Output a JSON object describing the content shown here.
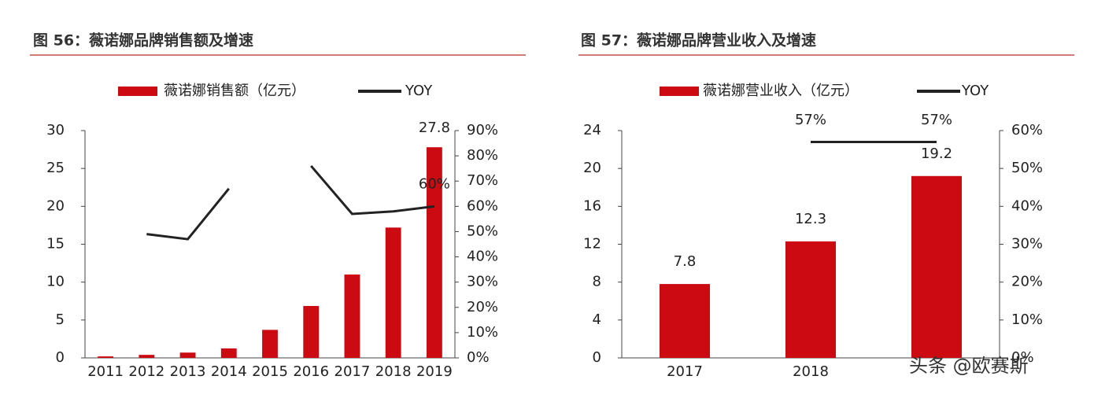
{
  "chart_data": [
    {
      "type": "bar",
      "title": "图 56：薇诺娜品牌销售额及增速",
      "categories": [
        "2011",
        "2012",
        "2013",
        "2014",
        "2015",
        "2016",
        "2017",
        "2018",
        "2019"
      ],
      "series": [
        {
          "name": "薇诺娜销售额（亿元）",
          "color": "#cc0a12",
          "values": [
            0.2,
            0.4,
            0.7,
            1.25,
            3.7,
            6.85,
            11.0,
            17.2,
            27.8
          ],
          "value_labels": [
            null,
            null,
            null,
            null,
            null,
            null,
            null,
            null,
            "27.8"
          ]
        },
        {
          "name": "YOY",
          "type": "line",
          "axis": "y2",
          "color": "#222222",
          "values": [
            null,
            49,
            47,
            67,
            null,
            76,
            57,
            58,
            60
          ],
          "value_labels": [
            null,
            null,
            null,
            null,
            null,
            null,
            null,
            null,
            "60%"
          ]
        }
      ],
      "ylim": [
        0,
        30
      ],
      "yticks": [
        0,
        5,
        10,
        15,
        20,
        25,
        30
      ],
      "y2lim": [
        0,
        90
      ],
      "y2ticks": [
        {
          "value": 0,
          "label": "0%"
        },
        {
          "value": 10,
          "label": "10%"
        },
        {
          "value": 20,
          "label": "20%"
        },
        {
          "value": 30,
          "label": "30%"
        },
        {
          "value": 40,
          "label": "40%"
        },
        {
          "value": 50,
          "label": "50%"
        },
        {
          "value": 60,
          "label": "60%"
        },
        {
          "value": 70,
          "label": "70%"
        },
        {
          "value": 80,
          "label": "80%"
        },
        {
          "value": 90,
          "label": "90%"
        }
      ]
    },
    {
      "type": "bar",
      "title": "图 57：薇诺娜品牌营业收入及增速",
      "categories": [
        "2017",
        "2018",
        null
      ],
      "series": [
        {
          "name": "薇诺娜营业收入（亿元）",
          "color": "#cc0a12",
          "values": [
            7.8,
            12.3,
            19.2
          ],
          "value_labels": [
            "7.8",
            "12.3",
            "19.2"
          ]
        },
        {
          "name": "YOY",
          "type": "line",
          "axis": "y2",
          "color": "#222222",
          "values": [
            null,
            57,
            57
          ],
          "value_labels": [
            null,
            "57%",
            "57%"
          ]
        }
      ],
      "ylim": [
        0,
        24
      ],
      "yticks": [
        0,
        4,
        8,
        12,
        16,
        20,
        24
      ],
      "y2lim": [
        0,
        60
      ],
      "y2ticks": [
        {
          "value": 0,
          "label": "0%"
        },
        {
          "value": 10,
          "label": "10%"
        },
        {
          "value": 20,
          "label": "20%"
        },
        {
          "value": 30,
          "label": "30%"
        },
        {
          "value": 40,
          "label": "40%"
        },
        {
          "value": 50,
          "label": "50%"
        },
        {
          "value": 60,
          "label": "60%"
        }
      ]
    }
  ],
  "watermark": "头条 @欧赛斯"
}
